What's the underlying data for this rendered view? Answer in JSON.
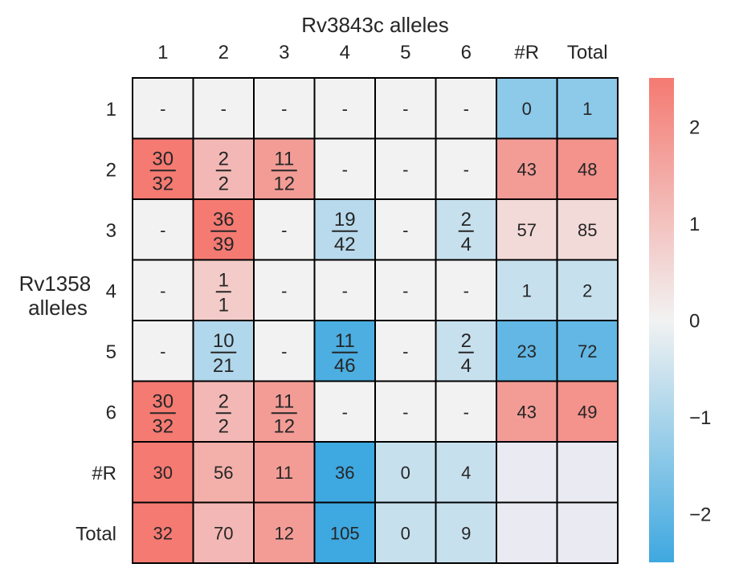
{
  "chart_data": {
    "type": "heatmap",
    "title": "",
    "xlabel": "Rv3843c alleles",
    "ylabel": "Rv1358 alleles",
    "ylabel_lines": [
      "Rv1358",
      "alleles"
    ],
    "x_ticks": [
      "1",
      "2",
      "3",
      "4",
      "5",
      "6",
      "#R",
      "Total"
    ],
    "y_ticks": [
      "1",
      "2",
      "3",
      "4",
      "5",
      "6",
      "#R",
      "Total"
    ],
    "colorbar": {
      "range": [
        -2.5,
        2.5
      ],
      "ticks": [
        2,
        1,
        0,
        -1,
        -2
      ],
      "tick_labels": [
        "2",
        "1",
        "0",
        "−1",
        "−2"
      ],
      "low_color": "#3ea8e0",
      "mid_color": "#f2f2f2",
      "high_color": "#f47a72"
    },
    "empty_color": "#eaeaf2",
    "cells": [
      [
        {
          "t": "-",
          "v": 0
        },
        {
          "t": "-",
          "v": 0
        },
        {
          "t": "-",
          "v": 0
        },
        {
          "t": "-",
          "v": 0
        },
        {
          "t": "-",
          "v": 0
        },
        {
          "t": "-",
          "v": 0
        },
        {
          "t": "0",
          "v": -1.4
        },
        {
          "t": "1",
          "v": -1.4
        }
      ],
      [
        {
          "n": "30",
          "d": "32",
          "v": 2.6
        },
        {
          "n": "2",
          "d": "2",
          "v": 1.2
        },
        {
          "n": "11",
          "d": "12",
          "v": 1.8
        },
        {
          "t": "-",
          "v": 0
        },
        {
          "t": "-",
          "v": 0
        },
        {
          "t": "-",
          "v": 0
        },
        {
          "t": "43",
          "v": 1.8
        },
        {
          "t": "48",
          "v": 2.0
        }
      ],
      [
        {
          "t": "-",
          "v": 0
        },
        {
          "n": "36",
          "d": "39",
          "v": 2.5
        },
        {
          "t": "-",
          "v": 0
        },
        {
          "n": "19",
          "d": "42",
          "v": -0.8
        },
        {
          "t": "-",
          "v": 0
        },
        {
          "n": "2",
          "d": "4",
          "v": -0.6
        },
        {
          "t": "57",
          "v": 0.5
        },
        {
          "t": "85",
          "v": 0.5
        }
      ],
      [
        {
          "t": "-",
          "v": 0
        },
        {
          "n": "1",
          "d": "1",
          "v": 0.8
        },
        {
          "t": "-",
          "v": 0
        },
        {
          "t": "-",
          "v": 0
        },
        {
          "t": "-",
          "v": 0
        },
        {
          "t": "-",
          "v": 0
        },
        {
          "t": "1",
          "v": -0.6
        },
        {
          "t": "2",
          "v": -0.6
        }
      ],
      [
        {
          "t": "-",
          "v": 0
        },
        {
          "n": "10",
          "d": "21",
          "v": -0.9
        },
        {
          "t": "-",
          "v": 0
        },
        {
          "n": "11",
          "d": "46",
          "v": -2.3
        },
        {
          "t": "-",
          "v": 0
        },
        {
          "n": "2",
          "d": "4",
          "v": -0.6
        },
        {
          "t": "23",
          "v": -2.0
        },
        {
          "t": "72",
          "v": -2.0
        }
      ],
      [
        {
          "n": "30",
          "d": "32",
          "v": 2.6
        },
        {
          "n": "2",
          "d": "2",
          "v": 1.2
        },
        {
          "n": "11",
          "d": "12",
          "v": 1.8
        },
        {
          "t": "-",
          "v": 0
        },
        {
          "t": "-",
          "v": 0
        },
        {
          "t": "-",
          "v": 0
        },
        {
          "t": "43",
          "v": 1.8
        },
        {
          "t": "49",
          "v": 2.0
        }
      ],
      [
        {
          "t": "30",
          "v": 2.6
        },
        {
          "t": "56",
          "v": 1.4
        },
        {
          "t": "11",
          "v": 1.8
        },
        {
          "t": "36",
          "v": -2.5
        },
        {
          "t": "0",
          "v": -0.6
        },
        {
          "t": "4",
          "v": -0.6
        },
        {
          "e": true
        },
        {
          "e": true
        }
      ],
      [
        {
          "t": "32",
          "v": 2.6
        },
        {
          "t": "70",
          "v": 1.2
        },
        {
          "t": "12",
          "v": 1.8
        },
        {
          "t": "105",
          "v": -2.5
        },
        {
          "t": "0",
          "v": -0.6
        },
        {
          "t": "9",
          "v": -0.6
        },
        {
          "e": true
        },
        {
          "e": true
        }
      ]
    ]
  }
}
